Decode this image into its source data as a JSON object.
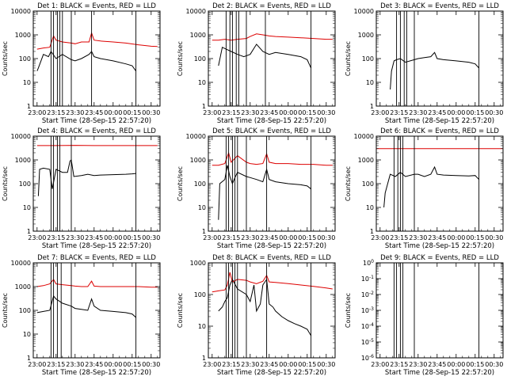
{
  "figure": {
    "x_axis_label": "Start Time (28-Sep-15 22:57:20)",
    "y_axis_label": "Counts/sec",
    "x_tick_labels": [
      "23:00",
      "23:15",
      "23:30",
      "23:45",
      "00:00",
      "00:15",
      "00:30"
    ]
  },
  "colors": {
    "events": "#000000",
    "lld": "#dd0000",
    "axes": "#000000",
    "background": "#ffffff"
  },
  "chart_data": [
    {
      "type": "line",
      "panel": 1,
      "title": "Det 1: BLACK = Events, RED = LLD",
      "scale": "log",
      "ylim": [
        1,
        10000
      ],
      "y_tick_labels": [
        "1",
        "10",
        "100",
        "1000",
        "10000"
      ],
      "xlim": [
        "22:57",
        "00:37"
      ],
      "vlines": [
        "23:11",
        "23:13",
        "23:16",
        "23:18",
        "23:20",
        "23:27",
        "23:43",
        "00:18"
      ],
      "series": [
        {
          "name": "Events",
          "color": "#000000",
          "x": [
            "23:00",
            "23:01",
            "23:05",
            "23:09",
            "23:11",
            "23:15",
            "23:20",
            "23:27",
            "23:30",
            "23:35",
            "23:41",
            "23:43",
            "23:45",
            "23:50",
            "00:00",
            "00:10",
            "00:15",
            "00:18"
          ],
          "y": [
            30,
            40,
            150,
            120,
            200,
            100,
            150,
            90,
            80,
            100,
            150,
            200,
            120,
            100,
            80,
            60,
            50,
            30
          ]
        },
        {
          "name": "LLD",
          "color": "#dd0000",
          "x": [
            "23:00",
            "23:05",
            "23:10",
            "23:13",
            "23:15",
            "23:20",
            "23:27",
            "23:30",
            "23:35",
            "23:41",
            "23:43",
            "23:45",
            "23:50",
            "00:00",
            "00:10",
            "00:20",
            "00:30",
            "00:35"
          ],
          "y": [
            250,
            280,
            300,
            900,
            600,
            500,
            450,
            420,
            500,
            500,
            1200,
            600,
            550,
            500,
            450,
            380,
            330,
            320
          ]
        }
      ]
    },
    {
      "type": "line",
      "panel": 2,
      "title": "Det 2: BLACK = Events, RED = LLD",
      "scale": "log",
      "ylim": [
        1,
        10000
      ],
      "y_tick_labels": [
        "1",
        "10",
        "100",
        "1000",
        "10000"
      ],
      "xlim": [
        "22:57",
        "00:37"
      ],
      "vlines": [
        "23:11",
        "23:14",
        "23:16",
        "23:19",
        "23:21",
        "23:27",
        "23:42",
        "00:18"
      ],
      "series": [
        {
          "name": "Events",
          "color": "#000000",
          "x": [
            "23:05",
            "23:08",
            "23:11",
            "23:15",
            "23:20",
            "23:25",
            "23:30",
            "23:35",
            "23:40",
            "23:45",
            "23:50",
            "00:00",
            "00:10",
            "00:15",
            "00:18"
          ],
          "y": [
            50,
            300,
            250,
            200,
            150,
            120,
            150,
            400,
            200,
            150,
            180,
            150,
            120,
            90,
            40
          ]
        },
        {
          "name": "LLD",
          "color": "#dd0000",
          "x": [
            "23:00",
            "23:05",
            "23:10",
            "23:15",
            "23:20",
            "23:27",
            "23:30",
            "23:35",
            "23:40",
            "23:45",
            "23:50",
            "00:00",
            "00:10",
            "00:20",
            "00:30",
            "00:35"
          ],
          "y": [
            600,
            600,
            650,
            600,
            650,
            700,
            850,
            1100,
            1000,
            900,
            850,
            800,
            750,
            700,
            650,
            650
          ]
        }
      ]
    },
    {
      "type": "line",
      "panel": 3,
      "title": "Det 3: BLACK = Events, RED = LLD",
      "scale": "log",
      "ylim": [
        1,
        10000
      ],
      "y_tick_labels": [
        "1",
        "10",
        "100",
        "1000",
        "10000"
      ],
      "xlim": [
        "22:57",
        "00:37"
      ],
      "vlines": [
        "23:13",
        "23:16",
        "23:19",
        "23:21",
        "23:27",
        "00:18"
      ],
      "series": [
        {
          "name": "Events",
          "color": "#000000",
          "x": [
            "23:08",
            "23:09",
            "23:11",
            "23:13",
            "23:16",
            "23:20",
            "23:27",
            "23:30",
            "23:35",
            "23:40",
            "23:43",
            "23:45",
            "23:50",
            "00:00",
            "00:10",
            "00:15",
            "00:18"
          ],
          "y": [
            5,
            30,
            80,
            90,
            100,
            70,
            90,
            100,
            110,
            120,
            180,
            100,
            90,
            80,
            70,
            60,
            40
          ]
        }
      ]
    },
    {
      "type": "line",
      "panel": 4,
      "title": "Det 4: BLACK = Events, RED = LLD",
      "scale": "log",
      "ylim": [
        1,
        10000
      ],
      "y_tick_labels": [
        "1",
        "10",
        "100",
        "1000",
        "10000"
      ],
      "xlim": [
        "22:57",
        "00:37"
      ],
      "vlines": [
        "23:11",
        "23:13",
        "23:16",
        "23:18",
        "23:27",
        "00:18"
      ],
      "series": [
        {
          "name": "Events",
          "color": "#000000",
          "x": [
            "23:01",
            "23:02",
            "23:05",
            "23:10",
            "23:12",
            "23:15",
            "23:20",
            "23:24",
            "23:26",
            "23:27",
            "23:29",
            "23:35",
            "23:40",
            "23:45",
            "23:50",
            "00:00",
            "00:10",
            "00:15",
            "00:18"
          ],
          "y": [
            30,
            400,
            450,
            400,
            60,
            400,
            300,
            300,
            900,
            1000,
            200,
            220,
            250,
            220,
            230,
            240,
            250,
            260,
            270
          ]
        },
        {
          "name": "LLD",
          "color": "#dd0000",
          "x": [
            "23:00",
            "23:15",
            "23:30",
            "23:45",
            "00:00",
            "00:15",
            "00:30",
            "00:35"
          ],
          "y": [
            4000,
            4000,
            4100,
            4000,
            4000,
            4000,
            4000,
            4000
          ]
        }
      ]
    },
    {
      "type": "line",
      "panel": 5,
      "title": "Det 5: BLACK = Events, RED = LLD",
      "scale": "log",
      "ylim": [
        1,
        10000
      ],
      "y_tick_labels": [
        "1",
        "10",
        "100",
        "1000",
        "10000"
      ],
      "xlim": [
        "22:57",
        "00:37"
      ],
      "vlines": [
        "23:11",
        "23:13",
        "23:16",
        "23:18",
        "23:20",
        "23:27",
        "23:43",
        "00:18"
      ],
      "series": [
        {
          "name": "Events",
          "color": "#000000",
          "x": [
            "23:05",
            "23:06",
            "23:10",
            "23:12",
            "23:14",
            "23:16",
            "23:18",
            "23:20",
            "23:27",
            "23:30",
            "23:35",
            "23:40",
            "23:43",
            "23:45",
            "23:50",
            "00:00",
            "00:10",
            "00:15",
            "00:18"
          ],
          "y": [
            3,
            100,
            150,
            600,
            200,
            100,
            180,
            300,
            200,
            180,
            150,
            120,
            400,
            150,
            120,
            100,
            90,
            80,
            60
          ]
        },
        {
          "name": "LLD",
          "color": "#dd0000",
          "x": [
            "23:00",
            "23:05",
            "23:10",
            "23:13",
            "23:15",
            "23:20",
            "23:27",
            "23:30",
            "23:35",
            "23:40",
            "23:43",
            "23:45",
            "23:50",
            "00:00",
            "00:10",
            "00:20",
            "00:30",
            "00:35"
          ],
          "y": [
            600,
            600,
            700,
            2000,
            800,
            1500,
            800,
            700,
            650,
            700,
            1800,
            800,
            700,
            700,
            650,
            650,
            600,
            600
          ]
        }
      ]
    },
    {
      "type": "line",
      "panel": 6,
      "title": "Det 6: BLACK = Events, RED = LLD",
      "scale": "log",
      "ylim": [
        1,
        10000
      ],
      "y_tick_labels": [
        "1",
        "10",
        "100",
        "1000",
        "10000"
      ],
      "xlim": [
        "22:57",
        "00:37"
      ],
      "vlines": [
        "23:11",
        "23:14",
        "23:16",
        "23:18",
        "23:27",
        "00:18"
      ],
      "series": [
        {
          "name": "Events",
          "color": "#000000",
          "x": [
            "23:03",
            "23:04",
            "23:08",
            "23:12",
            "23:16",
            "23:20",
            "23:27",
            "23:30",
            "23:35",
            "23:40",
            "23:43",
            "23:45",
            "23:50",
            "00:00",
            "00:10",
            "00:15",
            "00:18"
          ],
          "y": [
            10,
            40,
            250,
            200,
            300,
            200,
            250,
            250,
            200,
            250,
            500,
            250,
            230,
            220,
            210,
            220,
            150
          ]
        },
        {
          "name": "LLD",
          "color": "#dd0000",
          "x": [
            "22:57",
            "23:15",
            "23:30",
            "23:45",
            "00:00",
            "00:15",
            "00:30",
            "00:37"
          ],
          "y": [
            3000,
            3000,
            3000,
            3000,
            3000,
            3000,
            3000,
            3000
          ]
        }
      ]
    },
    {
      "type": "line",
      "panel": 7,
      "title": "Det 7: BLACK = Events, RED = LLD",
      "scale": "log",
      "ylim": [
        1,
        10000
      ],
      "y_tick_labels": [
        "1",
        "10",
        "100",
        "1000",
        "10000"
      ],
      "xlim": [
        "22:57",
        "00:37"
      ],
      "vlines": [
        "23:11",
        "23:13",
        "23:16",
        "23:19",
        "23:27",
        "00:18"
      ],
      "series": [
        {
          "name": "Events",
          "color": "#000000",
          "x": [
            "23:00",
            "23:05",
            "23:10",
            "23:13",
            "23:15",
            "23:20",
            "23:27",
            "23:30",
            "23:35",
            "23:40",
            "23:43",
            "23:45",
            "23:50",
            "00:00",
            "00:10",
            "00:15",
            "00:18"
          ],
          "y": [
            80,
            90,
            100,
            400,
            300,
            200,
            150,
            120,
            110,
            100,
            300,
            150,
            100,
            90,
            80,
            70,
            50
          ]
        },
        {
          "name": "LLD",
          "color": "#dd0000",
          "x": [
            "23:00",
            "23:05",
            "23:10",
            "23:13",
            "23:15",
            "23:20",
            "23:27",
            "23:30",
            "23:35",
            "23:40",
            "23:43",
            "23:45",
            "23:50",
            "00:00",
            "00:10",
            "00:20",
            "00:30",
            "00:35"
          ],
          "y": [
            1000,
            1100,
            1300,
            2000,
            1300,
            1200,
            1100,
            1050,
            1000,
            1000,
            1700,
            1050,
            1000,
            1000,
            1000,
            1000,
            950,
            950
          ]
        }
      ]
    },
    {
      "type": "line",
      "panel": 8,
      "title": "Det 8: BLACK = Events, RED = LLD",
      "scale": "log",
      "ylim": [
        1,
        1000
      ],
      "y_tick_labels": [
        "1",
        "10",
        "100",
        "1000"
      ],
      "xlim": [
        "22:57",
        "00:37"
      ],
      "vlines": [
        "23:11",
        "23:13",
        "23:16",
        "23:18",
        "23:20",
        "23:27",
        "23:43",
        "00:18"
      ],
      "series": [
        {
          "name": "Events",
          "color": "#000000",
          "x": [
            "23:05",
            "23:08",
            "23:10",
            "23:12",
            "23:14",
            "23:16",
            "23:20",
            "23:27",
            "23:30",
            "23:33",
            "23:35",
            "23:38",
            "23:40",
            "23:43",
            "23:45",
            "23:48",
            "23:50",
            "23:55",
            "00:00",
            "00:05",
            "00:10",
            "00:15",
            "00:18"
          ],
          "y": [
            30,
            40,
            60,
            80,
            200,
            300,
            150,
            100,
            60,
            200,
            30,
            50,
            200,
            300,
            50,
            40,
            30,
            20,
            15,
            12,
            10,
            8,
            5
          ]
        },
        {
          "name": "LLD",
          "color": "#dd0000",
          "x": [
            "23:00",
            "23:05",
            "23:10",
            "23:12",
            "23:14",
            "23:16",
            "23:20",
            "23:27",
            "23:30",
            "23:35",
            "23:40",
            "23:43",
            "23:45",
            "23:50",
            "00:00",
            "00:10",
            "00:20",
            "00:30",
            "00:35"
          ],
          "y": [
            120,
            130,
            140,
            200,
            500,
            250,
            300,
            280,
            250,
            220,
            260,
            400,
            250,
            240,
            220,
            200,
            180,
            160,
            150
          ]
        }
      ]
    },
    {
      "type": "line",
      "panel": 9,
      "title": "Det 9: BLACK = Events, RED = LLD",
      "scale": "log",
      "ylim": [
        "10^0",
        "10^-6"
      ],
      "y_tick_labels": [
        "10^0",
        "10^-1",
        "10^-2",
        "10^-3",
        "10^-4",
        "10^-5",
        "10^-6"
      ],
      "xlim": [
        "22:57",
        "00:37"
      ],
      "vlines": [
        "23:11",
        "23:13",
        "23:16",
        "23:18",
        "23:27",
        "00:18"
      ],
      "series": []
    }
  ]
}
